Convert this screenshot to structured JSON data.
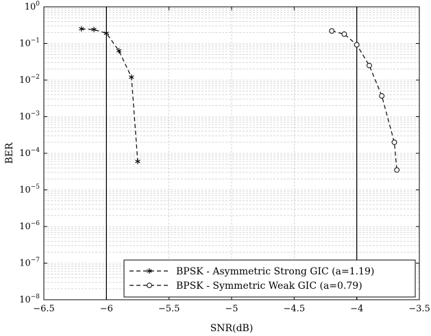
{
  "chart_data": {
    "type": "line",
    "xlabel": "SNR(dB)",
    "ylabel": "BER",
    "xlim": [
      -6.5,
      -3.5
    ],
    "ylim": [
      1e-08,
      1
    ],
    "yscale": "log",
    "grid": true,
    "legend_position": "bottom-right",
    "x_ticks": [
      -6.5,
      -6,
      -5.5,
      -5,
      -4.5,
      -4,
      -3.5
    ],
    "x_tick_labels": [
      "−6.5",
      "−6",
      "−5.5",
      "−5",
      "−4.5",
      "−4",
      "−3.5"
    ],
    "y_ticks": [
      {
        "base": "10",
        "exp": "−8",
        "value": 1e-08
      },
      {
        "base": "10",
        "exp": "−7",
        "value": 1e-07
      },
      {
        "base": "10",
        "exp": "−6",
        "value": 1e-06
      },
      {
        "base": "10",
        "exp": "−5",
        "value": 1e-05
      },
      {
        "base": "10",
        "exp": "−4",
        "value": 0.0001
      },
      {
        "base": "10",
        "exp": "−3",
        "value": 0.001
      },
      {
        "base": "10",
        "exp": "−2",
        "value": 0.01
      },
      {
        "base": "10",
        "exp": "−1",
        "value": 0.1
      },
      {
        "base": "10",
        "exp": "0",
        "value": 1
      }
    ],
    "vertical_lines": [
      -6,
      -4
    ],
    "series": [
      {
        "name": "BPSK - Asymmetric Strong GIC (a=1.19)",
        "marker": "asterisk",
        "line_style": "dashed",
        "color": "#000000",
        "x": [
          -6.2,
          -6.1,
          -6.0,
          -5.9,
          -5.8,
          -5.75
        ],
        "y": [
          0.25,
          0.24,
          0.19,
          0.063,
          0.012,
          6e-05
        ]
      },
      {
        "name": "BPSK - Symmetric Weak GIC (a=0.79)",
        "marker": "circle",
        "line_style": "dashed",
        "color": "#000000",
        "x": [
          -4.2,
          -4.1,
          -4.0,
          -3.9,
          -3.8,
          -3.7,
          -3.68
        ],
        "y": [
          0.22,
          0.18,
          0.092,
          0.025,
          0.0037,
          0.0002,
          3.5e-05
        ]
      }
    ]
  }
}
